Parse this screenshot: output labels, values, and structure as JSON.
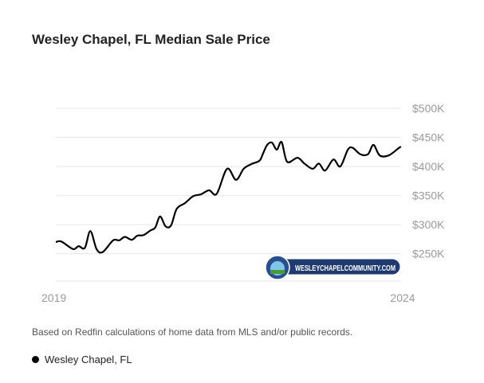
{
  "chart_data": {
    "type": "line",
    "title": "Wesley Chapel, FL Median Sale Price",
    "xlabel": "",
    "ylabel": "",
    "x_ticks": [
      "2019",
      "2024"
    ],
    "xlim": [
      2019,
      2024
    ],
    "y_ticks": [
      "$250K",
      "$300K",
      "$350K",
      "$400K",
      "$450K",
      "$500K"
    ],
    "y_tick_values": [
      250,
      300,
      350,
      400,
      450,
      500
    ],
    "ylim": [
      203,
      500
    ],
    "y_units": "thousands USD",
    "y_axis_position": "right",
    "grid": true,
    "legend_position": "bottom-left",
    "series": [
      {
        "name": "Wesley Chapel, FL",
        "color": "#000000",
        "x": [
          2019.0,
          2019.08,
          2019.25,
          2019.33,
          2019.42,
          2019.5,
          2019.59,
          2019.68,
          2019.83,
          2019.92,
          2020.0,
          2020.1,
          2020.18,
          2020.27,
          2020.37,
          2020.44,
          2020.51,
          2020.59,
          2020.67,
          2020.75,
          2020.87,
          2020.99,
          2021.1,
          2021.22,
          2021.33,
          2021.48,
          2021.61,
          2021.72,
          2021.83,
          2021.95,
          2022.0,
          2022.06,
          2022.13,
          2022.2,
          2022.27,
          2022.35,
          2022.5,
          2022.6,
          2022.72,
          2022.81,
          2022.9,
          2023.02,
          2023.12,
          2023.23,
          2023.3,
          2023.41,
          2023.52,
          2023.6,
          2023.69,
          2023.82,
          2023.97,
          2024.0
        ],
        "values": [
          270,
          271,
          258,
          263,
          260,
          289,
          258,
          253,
          273,
          273,
          279,
          274,
          281,
          282,
          290,
          295,
          314,
          297,
          299,
          327,
          337,
          349,
          352,
          359,
          353,
          396,
          377,
          396,
          404,
          410,
          422,
          437,
          441,
          429,
          442,
          408,
          415,
          405,
          396,
          405,
          393,
          412,
          400,
          429,
          432,
          421,
          421,
          437,
          419,
          419,
          432,
          434
        ]
      }
    ]
  },
  "note": "Based on Redfin calculations of home data from MLS and/or public records.",
  "watermark": "WesleyChapelCommunity.com"
}
